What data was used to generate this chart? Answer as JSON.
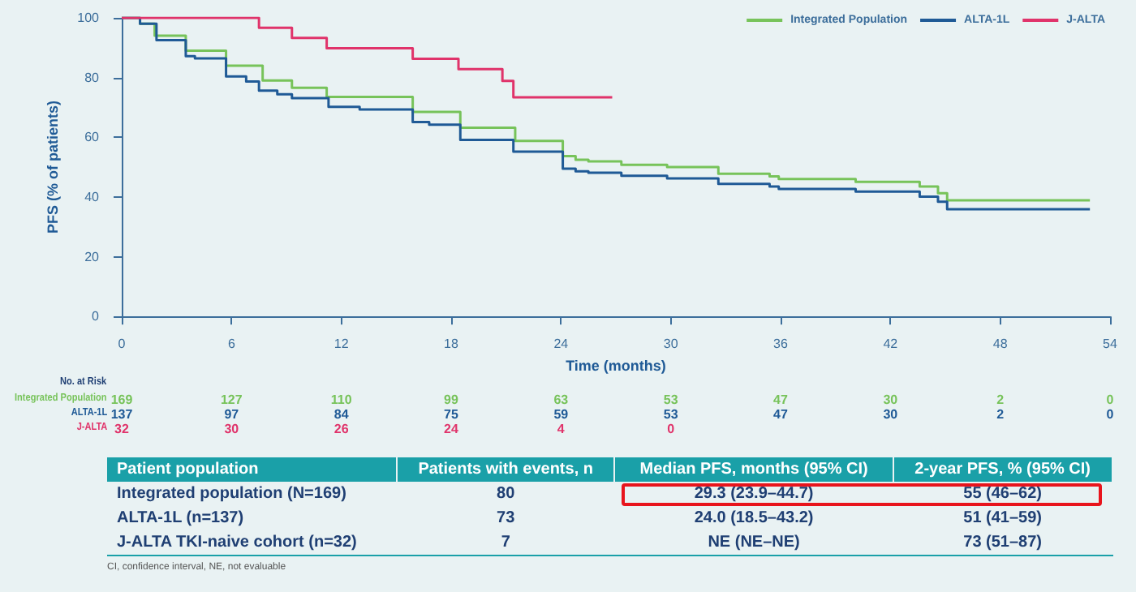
{
  "chart_data": [
    {
      "type": "step",
      "ylabel": "PFS (% of patients)",
      "xlabel": "Time (months)",
      "xlim": [
        0,
        54
      ],
      "xticks": [
        0,
        6,
        12,
        18,
        24,
        30,
        36,
        42,
        48,
        54
      ],
      "ylim": [
        0,
        100
      ],
      "yticks": [
        0,
        20,
        40,
        60,
        80,
        100
      ],
      "grid": false,
      "legend": "top right",
      "marker": "none",
      "line_style": "solid",
      "series": [
        {
          "name": "Integrated Population",
          "color": "#77c35a",
          "x": [
            0,
            1,
            1.8,
            3.5,
            5.7,
            7.7,
            9.3,
            11.2,
            15.9,
            18.5,
            21.5,
            24.1,
            24.8,
            25.5,
            27.3,
            29.8,
            32.6,
            35.4,
            35.9,
            40.1,
            43.6,
            44.6,
            45.1,
            52.9
          ],
          "values": [
            100,
            98,
            94,
            89,
            84,
            79,
            76.6,
            73.5,
            68.5,
            63.2,
            58.8,
            53.7,
            52.5,
            51.9,
            50.8,
            50,
            47.8,
            46.9,
            46,
            45.1,
            43.5,
            41.3,
            38.9,
            38.9
          ]
        },
        {
          "name": "ALTA-1L",
          "color": "#1f5a96",
          "x": [
            0,
            1,
            1.9,
            3.5,
            4,
            5.7,
            6.8,
            7.5,
            8.5,
            9.3,
            11.3,
            13,
            15.9,
            16.8,
            18.5,
            21.4,
            24.1,
            24.8,
            25.5,
            27.3,
            29.8,
            32.6,
            35.4,
            35.9,
            40.1,
            43.6,
            44.6,
            45.1,
            52.9
          ],
          "values": [
            100,
            98,
            92.5,
            87.2,
            86.4,
            80.4,
            78.7,
            75.6,
            74.4,
            73.1,
            70.2,
            69.3,
            65.1,
            64.2,
            59.1,
            55.2,
            49.5,
            48.6,
            48.1,
            47.1,
            46.2,
            44.4,
            43.5,
            42.7,
            41.8,
            40.1,
            38.4,
            35.9,
            35.9
          ]
        },
        {
          "name": "J-ALTA",
          "color": "#e0336a",
          "x": [
            0,
            7.5,
            9.3,
            11.2,
            15.9,
            18.4,
            20.8,
            21.4,
            26.8
          ],
          "values": [
            100,
            96.7,
            93.3,
            89.8,
            86.3,
            82.8,
            78.9,
            73.4,
            73.4
          ]
        }
      ]
    },
    {
      "type": "other",
      "title": "No. at Risk",
      "y_categories": [
        "Integrated Population",
        "ALTA-1L",
        "J-ALTA"
      ],
      "categories": [
        null,
        null,
        null,
        null,
        null,
        null,
        null,
        null,
        null,
        null
      ],
      "colors": [
        "#77c35a",
        "#1f5a96",
        "#e0336a"
      ],
      "cell_labels": [
        [
          "169",
          "127",
          "110",
          "99",
          "63",
          "53",
          "47",
          "30",
          "2",
          "0"
        ],
        [
          "137",
          "97",
          "84",
          "75",
          "59",
          "53",
          "47",
          "30",
          "2",
          "0"
        ],
        [
          "32",
          "30",
          "26",
          "24",
          "4",
          "0",
          null,
          null,
          null,
          null
        ]
      ]
    },
    {
      "type": "other",
      "categories": [
        "Patient population",
        "Patients with events, n",
        "Median PFS, months (95% CI)",
        "2-year PFS, % (95% CI)"
      ],
      "cell_labels": [
        [
          "Integrated population (N=169)",
          "80",
          "29.3 (23.9–44.7)",
          "55 (46–62)"
        ],
        [
          "ALTA-1L (n=137)",
          "73",
          "24.0 (18.5–43.2)",
          "51 (41–59)"
        ],
        [
          "J-ALTA TKI-naive cohort (n=32)",
          "7",
          "NE (NE–NE)",
          "73 (51–87)"
        ]
      ],
      "annotations": [
        "CI, confidence interval, NE, not evaluable"
      ]
    }
  ]
}
